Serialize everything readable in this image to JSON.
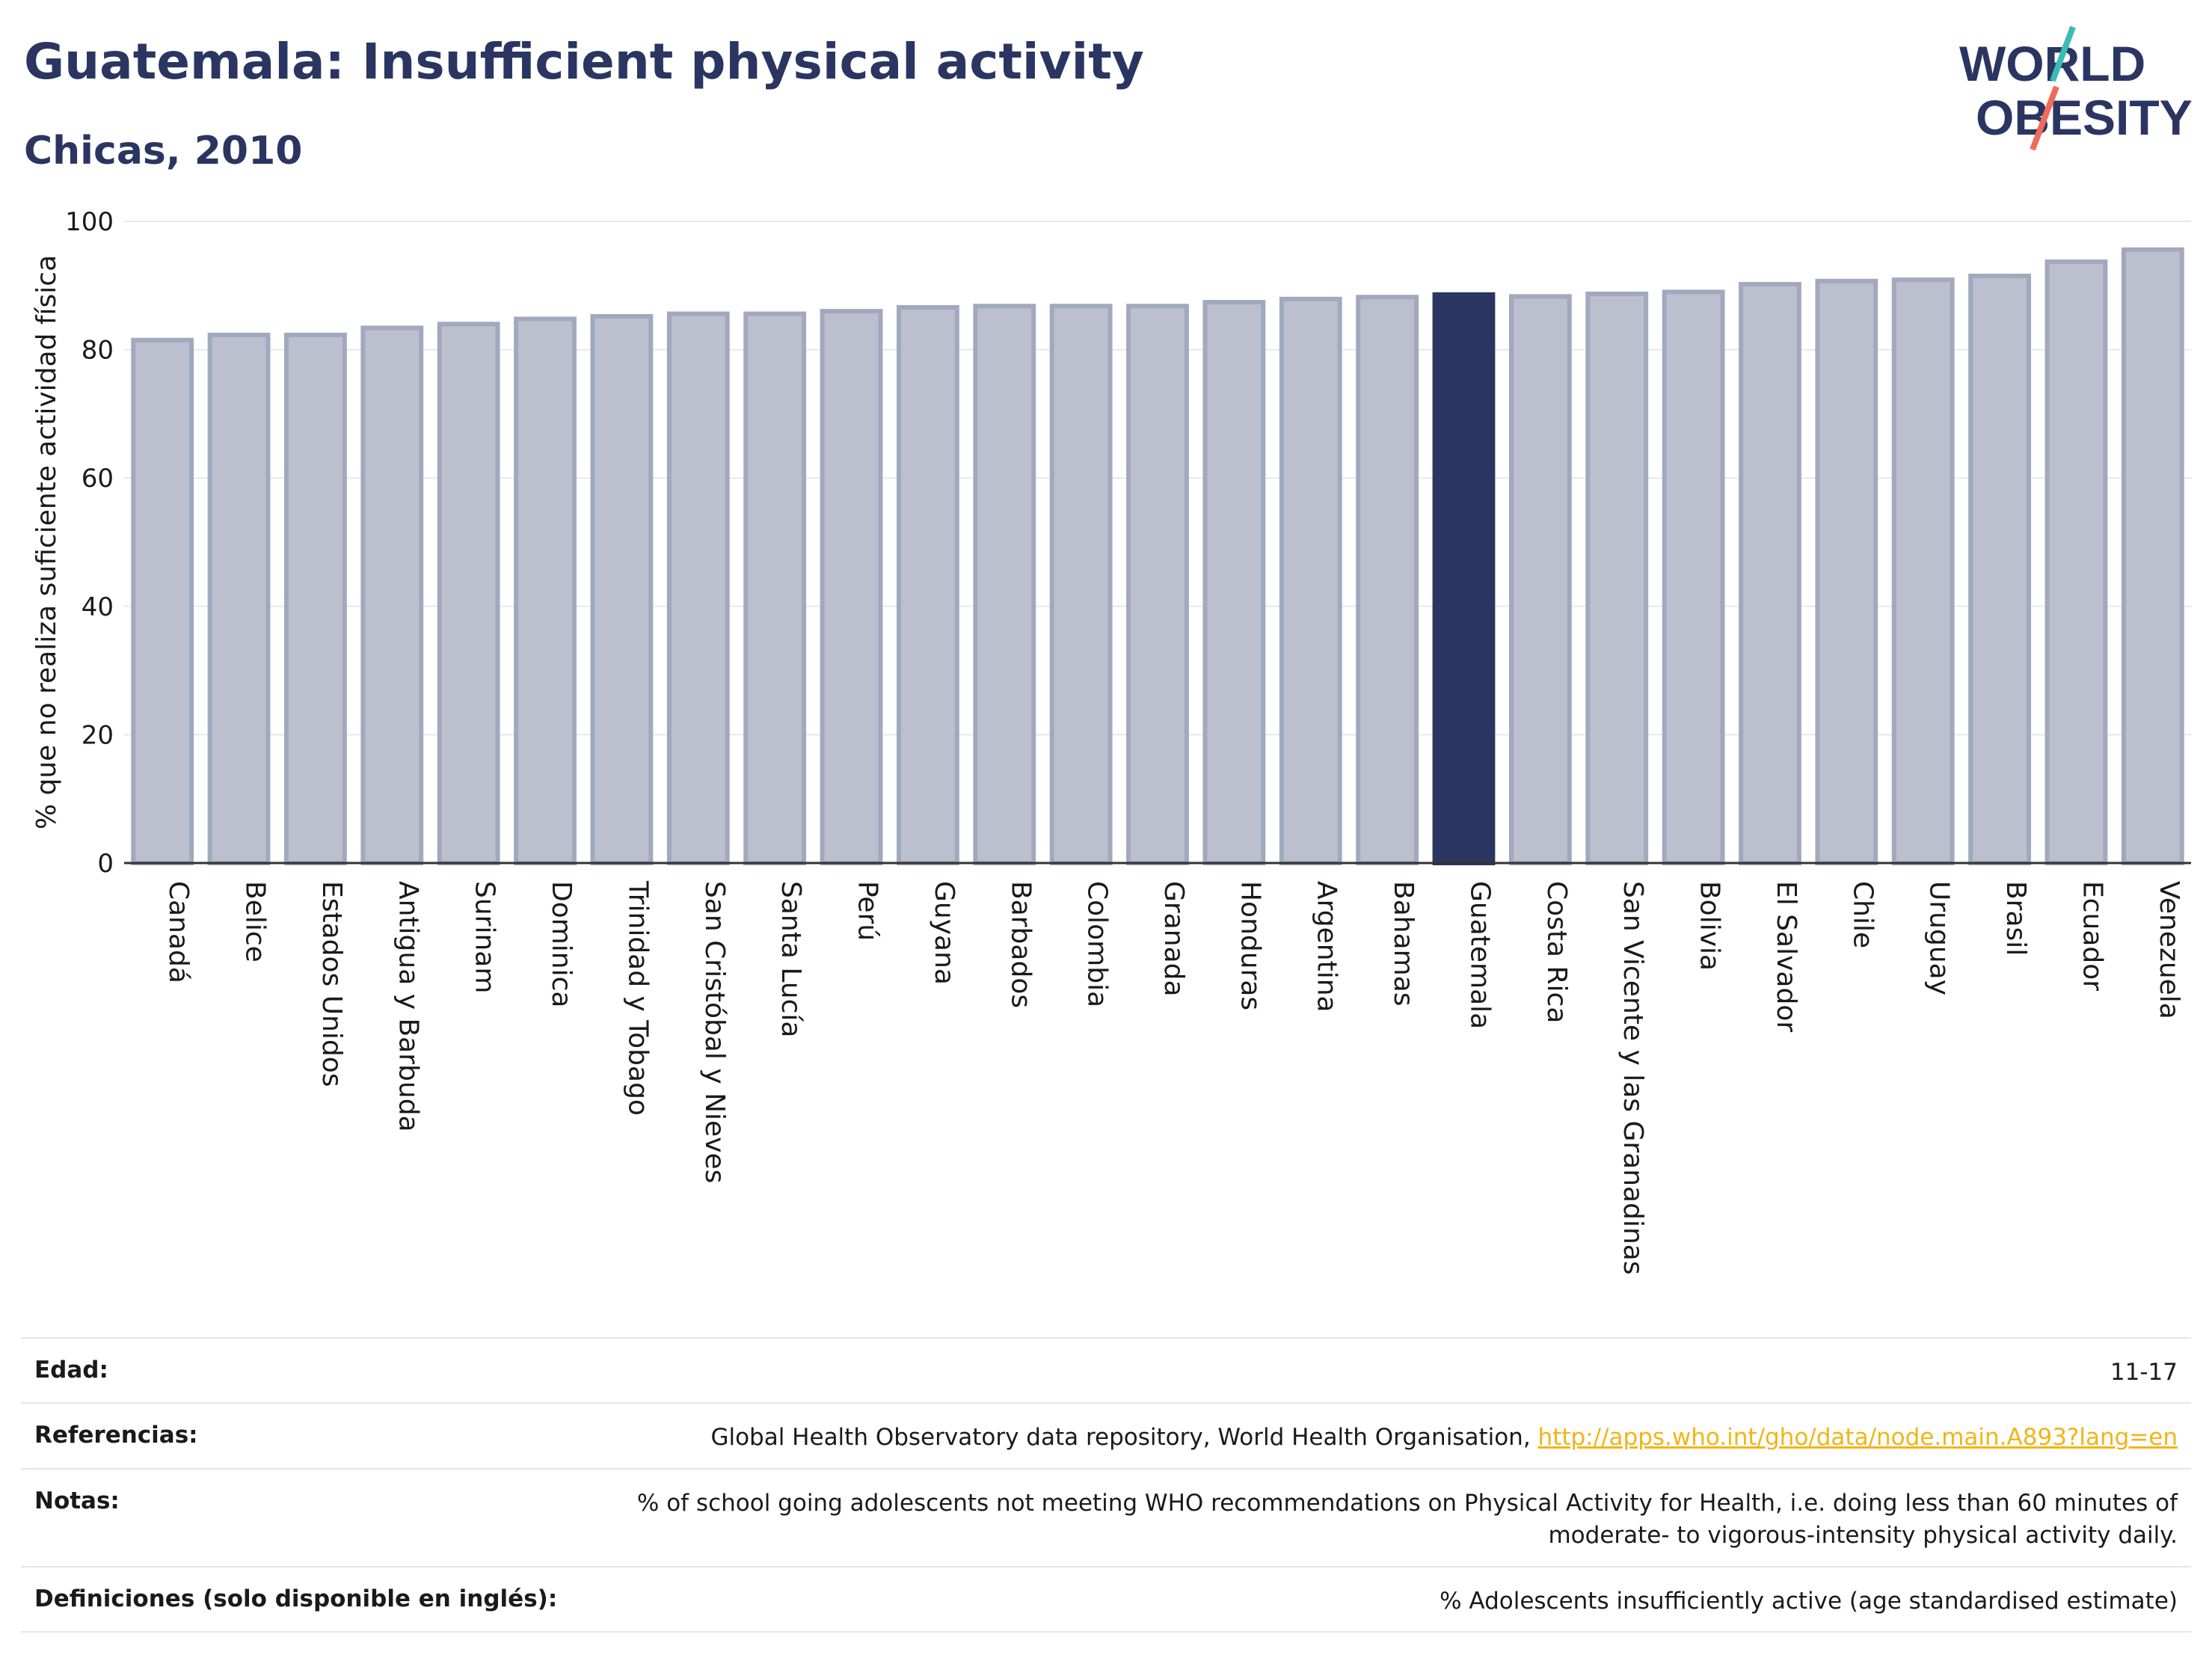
{
  "header": {
    "title": "Guatemala: Insufficient physical activity",
    "subtitle": "Chicas, 2010"
  },
  "logo": {
    "line1": "WORLD",
    "line2": "OBESITY"
  },
  "chart_data": {
    "type": "bar",
    "title": "Guatemala: Insufficient physical activity",
    "subtitle": "Chicas, 2010",
    "ylabel": "% que no realiza suficiente actividad física",
    "xlabel": "",
    "ylim": [
      0,
      100
    ],
    "yticks": [
      0,
      20,
      40,
      60,
      80,
      100
    ],
    "grid": true,
    "highlight": "Guatemala",
    "colors": {
      "bar": "#bcc0ce",
      "bar_border": "#a2a8bd",
      "highlight": "#2b3562",
      "grid": "#e6e8ee",
      "axis": "#333333"
    },
    "categories": [
      "Canadá",
      "Belice",
      "Estados Unidos",
      "Antigua y Barbuda",
      "Surinam",
      "Dominica",
      "Trinidad y Tobago",
      "San Cristóbal y Nieves",
      "Santa Lucía",
      "Perú",
      "Guyana",
      "Barbados",
      "Colombia",
      "Granada",
      "Honduras",
      "Argentina",
      "Bahamas",
      "Guatemala",
      "Costa Rica",
      "San Vicente y las Granadinas",
      "Bolivia",
      "El Salvador",
      "Chile",
      "Uruguay",
      "Brasil",
      "Ecuador",
      "Venezuela"
    ],
    "values": [
      81.5,
      82.3,
      82.3,
      83.4,
      84.0,
      84.8,
      85.2,
      85.6,
      85.6,
      86.0,
      86.6,
      86.8,
      86.8,
      86.8,
      87.4,
      87.9,
      88.2,
      88.6,
      88.3,
      88.7,
      89.0,
      90.2,
      90.7,
      90.9,
      91.5,
      93.7,
      95.6
    ]
  },
  "meta": {
    "age_label": "Edad:",
    "age_value": "11-17",
    "ref_label": "Referencias:",
    "ref_text": "Global Health Observatory data repository, World Health Organisation, ",
    "ref_link": "http://apps.who.int/gho/data/node.main.A893?lang=en",
    "notes_label": "Notas:",
    "notes_value": "% of school going adolescents not meeting WHO recommendations on Physical Activity for Health, i.e. doing less than 60 minutes of moderate- to vigorous-intensity physical activity daily.",
    "def_label": "Definiciones (solo disponible en inglés):",
    "def_value": "% Adolescents insufficiently active (age standardised estimate)"
  }
}
